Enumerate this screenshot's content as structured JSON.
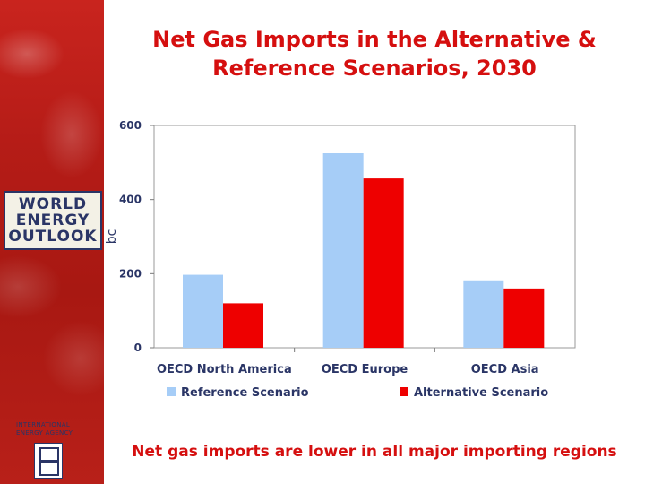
{
  "slide": {
    "title_line1": "Net Gas Imports in the Alternative &",
    "title_line2": "Reference Scenarios, 2030",
    "caption": "Net gas imports are lower in all major importing regions"
  },
  "sidebar": {
    "logo_line1": "WORLD",
    "logo_line2": "ENERGY",
    "logo_line3": "OUTLOOK",
    "agency_line1": "INTERNATIONAL",
    "agency_line2": "ENERGY AGENCY"
  },
  "colors": {
    "title": "#d50f0f",
    "reference": "#a6cdf7",
    "alternative": "#ee0000",
    "sidebar": "#b51c17"
  },
  "chart_data": {
    "type": "bar",
    "categories": [
      "OECD North America",
      "OECD Europe",
      "OECD Asia"
    ],
    "series": [
      {
        "name": "Reference Scenario",
        "values": [
          197,
          525,
          182
        ]
      },
      {
        "name": "Alternative Scenario",
        "values": [
          120,
          457,
          160
        ]
      }
    ],
    "ylabel": "bc",
    "ylim": [
      0,
      600
    ],
    "yticks": [
      "0",
      "200",
      "400",
      "600"
    ],
    "grid": false,
    "legend": "bottom"
  }
}
